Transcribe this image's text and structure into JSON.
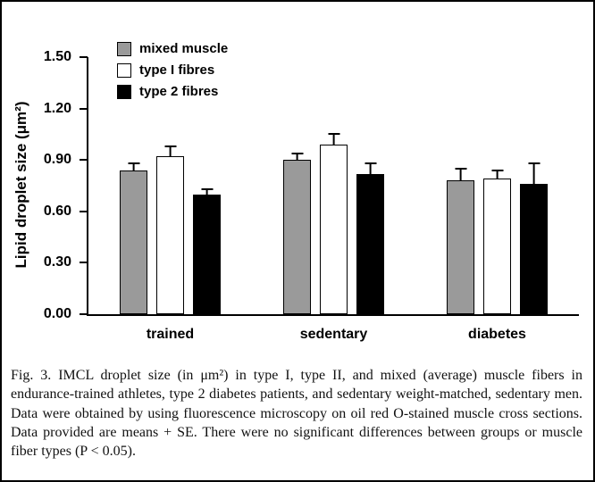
{
  "figure": {
    "caption": "Fig. 3. IMCL droplet size (in μm²) in type I, type II, and mixed (average) muscle fibers in endurance-trained athletes, type 2 diabetes patients, and sedentary weight-matched, sedentary men. Data were obtained by using fluorescence microscopy on oil red O-stained muscle cross sections. Data provided are means + SE. There were no significant differences between groups or muscle fiber types (P < 0.05)."
  },
  "chart_data": {
    "type": "bar",
    "title": "",
    "xlabel": "",
    "ylabel": "Lipid droplet size (μm²)",
    "categories": [
      "trained",
      "sedentary",
      "diabetes"
    ],
    "series": [
      {
        "name": "mixed muscle",
        "color": "#9a9a9a",
        "values": [
          0.84,
          0.9,
          0.78
        ],
        "errors": [
          0.05,
          0.05,
          0.08
        ]
      },
      {
        "name": "type I fibres",
        "color": "#ffffff",
        "values": [
          0.92,
          0.99,
          0.79
        ],
        "errors": [
          0.07,
          0.07,
          0.06
        ]
      },
      {
        "name": "type 2 fibres",
        "color": "#000000",
        "values": [
          0.7,
          0.82,
          0.76
        ],
        "errors": [
          0.04,
          0.07,
          0.13
        ]
      }
    ],
    "ylim": [
      0,
      1.5
    ],
    "yticks": [
      0.0,
      0.3,
      0.6,
      0.9,
      1.2,
      1.5
    ],
    "grid": false,
    "legend_position": "top-left",
    "error_note": "means + SE"
  }
}
